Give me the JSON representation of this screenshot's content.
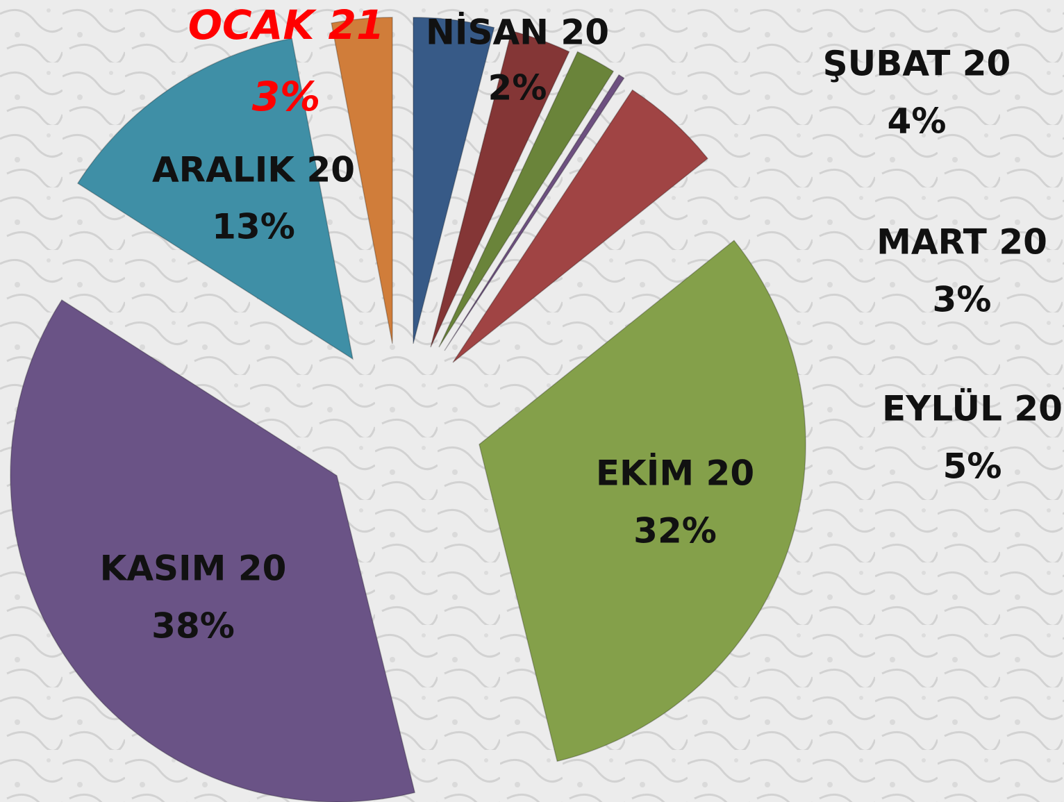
{
  "chart_data": {
    "type": "pie",
    "categories": [
      "ŞUBAT 20",
      "MART 20",
      "NİSAN 20",
      null,
      "EYLÜL 20",
      "EKİM 20",
      "KASIM 20",
      "ARALIK 20",
      "OCAK 21"
    ],
    "values": [
      4,
      3,
      2,
      0.3,
      5,
      32,
      38,
      13,
      3
    ],
    "value_labels": [
      "4%",
      "3%",
      "2%",
      null,
      "5%",
      "32%",
      "38%",
      "13%",
      "3%"
    ],
    "colors": [
      "#375a87",
      "#843636",
      "#6a843a",
      "#6d5080",
      "#a04444",
      "#84a04a",
      "#6a5386",
      "#3f8fa6",
      "#d07d3a"
    ]
  }
}
